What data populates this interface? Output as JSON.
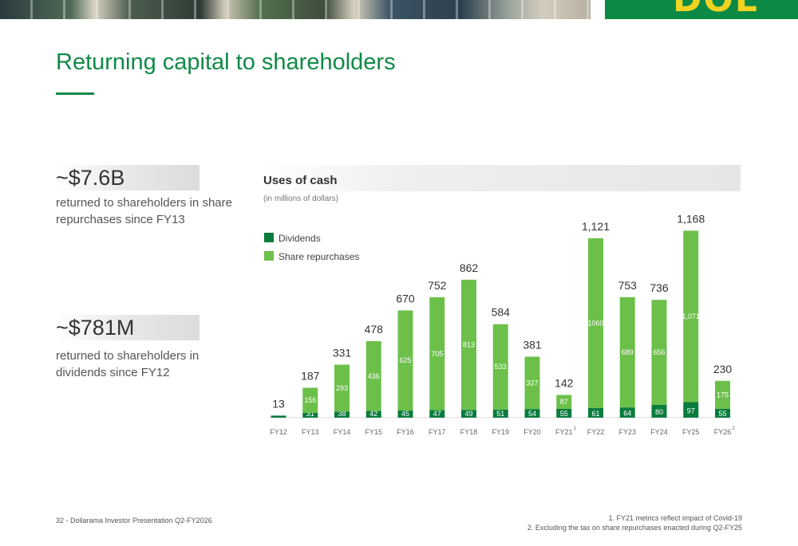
{
  "header": {
    "brand_text": "DOL"
  },
  "slide": {
    "title": "Returning capital to shareholders"
  },
  "highlights": [
    {
      "value": "~$7.6B",
      "description": "returned to shareholders in share repurchases since FY13"
    },
    {
      "value": "~$781M",
      "description": "returned to shareholders in dividends since FY12"
    }
  ],
  "chart_data": {
    "type": "bar",
    "stacked": true,
    "title": "Uses of cash",
    "subtitle": "(in millions of dollars)",
    "categories": [
      "FY12",
      "FY13",
      "FY14",
      "FY15",
      "FY16",
      "FY17",
      "FY18",
      "FY19",
      "FY20",
      "FY21",
      "FY22",
      "FY23",
      "FY24",
      "FY25",
      "FY26"
    ],
    "category_superscripts": [
      "",
      "",
      "",
      "",
      "",
      "",
      "",
      "",
      "",
      "1",
      "",
      "",
      "",
      "",
      "2"
    ],
    "series": [
      {
        "name": "Dividends",
        "color": "#0a7c3e",
        "values": [
          13,
          31,
          38,
          42,
          45,
          47,
          49,
          51,
          54,
          55,
          61,
          64,
          80,
          97,
          55
        ],
        "labels": [
          "",
          "31",
          "38",
          "42",
          "45",
          "47",
          "49",
          "51",
          "54",
          "55",
          "61",
          "64",
          "80",
          "97",
          "55"
        ]
      },
      {
        "name": "Share repurchases",
        "color": "#6cc04a",
        "values": [
          0,
          156,
          293,
          436,
          625,
          705,
          813,
          533,
          327,
          87,
          1060,
          689,
          656,
          1071,
          175
        ],
        "labels": [
          "",
          "156",
          "293",
          "436",
          "625",
          "705",
          "813",
          "533",
          "327",
          "87",
          "1060",
          "689",
          "656",
          "1,071",
          "175"
        ]
      }
    ],
    "totals": [
      "13",
      "187",
      "331",
      "478",
      "670",
      "752",
      "862",
      "584",
      "381",
      "142",
      "1,121",
      "753",
      "736",
      "1,168",
      "230"
    ],
    "ylim": [
      0,
      1200
    ],
    "grid": false,
    "legend_position": "top-left"
  },
  "footer": {
    "page_label": "32 - Dollarama Investor Presentation Q2-FY2026",
    "notes": [
      "1. FY21 metrics reflect impact of Covid-19",
      "2. Excluding the tax on share repurchases enacted during Q2-FY25"
    ]
  }
}
